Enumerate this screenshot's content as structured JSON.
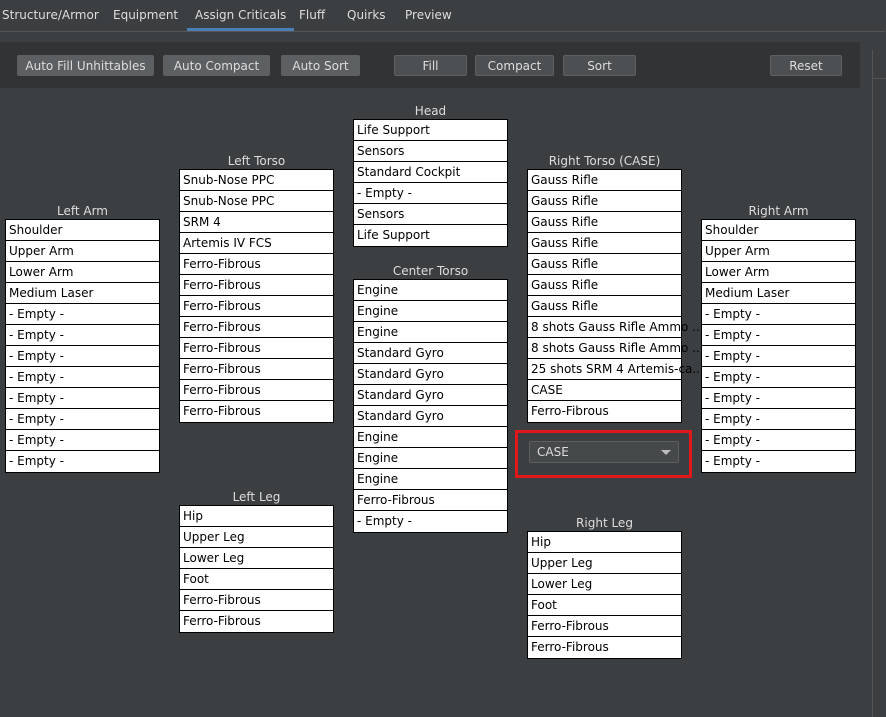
{
  "tabs": [
    {
      "label": "Structure/Armor"
    },
    {
      "label": "Equipment"
    },
    {
      "label": "Assign Criticals",
      "active": true
    },
    {
      "label": "Fluff"
    },
    {
      "label": "Quirks"
    },
    {
      "label": "Preview"
    }
  ],
  "toolbar": {
    "buttons": [
      "Auto Fill Unhittables",
      "Auto Compact",
      "Auto Sort",
      "Fill",
      "Compact",
      "Sort",
      "Reset"
    ]
  },
  "locations": [
    {
      "id": "left-arm",
      "title": "Left Arm",
      "slots": [
        "Shoulder",
        "Upper Arm",
        "Lower Arm",
        "Medium Laser",
        "- Empty -",
        "- Empty -",
        "- Empty -",
        "- Empty -",
        "- Empty -",
        "- Empty -",
        "- Empty -",
        "- Empty -"
      ]
    },
    {
      "id": "left-torso",
      "title": "Left Torso",
      "slots": [
        "Snub-Nose PPC",
        "Snub-Nose PPC",
        "SRM 4",
        "Artemis IV FCS",
        "Ferro-Fibrous",
        "Ferro-Fibrous",
        "Ferro-Fibrous",
        "Ferro-Fibrous",
        "Ferro-Fibrous",
        "Ferro-Fibrous",
        "Ferro-Fibrous",
        "Ferro-Fibrous"
      ]
    },
    {
      "id": "head",
      "title": "Head",
      "slots": [
        "Life Support",
        "Sensors",
        "Standard Cockpit",
        "- Empty -",
        "Sensors",
        "Life Support"
      ]
    },
    {
      "id": "center-torso",
      "title": "Center Torso",
      "slots": [
        "Engine",
        "Engine",
        "Engine",
        "Standard Gyro",
        "Standard Gyro",
        "Standard Gyro",
        "Standard Gyro",
        "Engine",
        "Engine",
        "Engine",
        "Ferro-Fibrous",
        "- Empty -"
      ]
    },
    {
      "id": "right-torso",
      "title": "Right Torso (CASE)",
      "slots": [
        "Gauss Rifle",
        "Gauss Rifle",
        "Gauss Rifle",
        "Gauss Rifle",
        "Gauss Rifle",
        "Gauss Rifle",
        "Gauss Rifle",
        "8 shots Gauss Rifle Ammo ...",
        "8 shots Gauss Rifle Ammo ...",
        "25 shots SRM 4 Artemis-ca...",
        "CASE",
        "Ferro-Fibrous"
      ]
    },
    {
      "id": "right-arm",
      "title": "Right Arm",
      "slots": [
        "Shoulder",
        "Upper Arm",
        "Lower Arm",
        "Medium Laser",
        "- Empty -",
        "- Empty -",
        "- Empty -",
        "- Empty -",
        "- Empty -",
        "- Empty -",
        "- Empty -",
        "- Empty -"
      ]
    },
    {
      "id": "left-leg",
      "title": "Left Leg",
      "slots": [
        "Hip",
        "Upper Leg",
        "Lower Leg",
        "Foot",
        "Ferro-Fibrous",
        "Ferro-Fibrous"
      ]
    },
    {
      "id": "right-leg",
      "title": "Right Leg",
      "slots": [
        "Hip",
        "Upper Leg",
        "Lower Leg",
        "Foot",
        "Ferro-Fibrous",
        "Ferro-Fibrous"
      ]
    }
  ],
  "case_dropdown": {
    "value": "CASE"
  },
  "colors": {
    "highlight": "#e0181c",
    "tab_accent": "#4a7eb5"
  }
}
